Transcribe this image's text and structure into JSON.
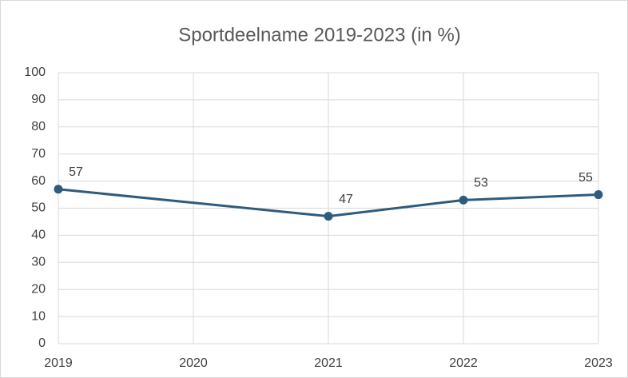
{
  "chart_data": {
    "type": "line",
    "title": "Sportdeelname 2019-2023 (in %)",
    "x": [
      2019,
      2021,
      2022,
      2023
    ],
    "values": [
      57,
      47,
      53,
      55
    ],
    "color": "#2f5b7c",
    "xlim": [
      2019,
      2023
    ],
    "xticks": [
      2019,
      2020,
      2021,
      2022,
      2023
    ],
    "ylim": [
      0,
      100
    ],
    "yticks": [
      0,
      10,
      20,
      30,
      40,
      50,
      60,
      70,
      80,
      90,
      100
    ],
    "grid": true
  }
}
